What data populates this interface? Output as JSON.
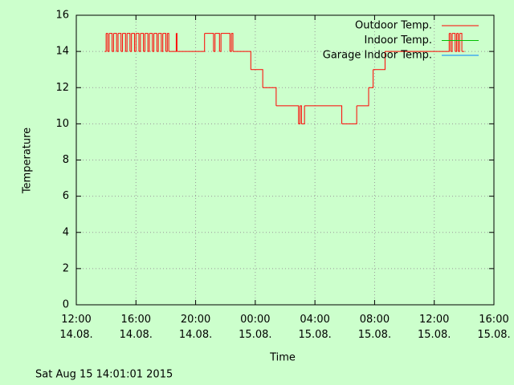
{
  "chart_data": {
    "type": "line",
    "style": "steps",
    "x_label": "Time",
    "y_label": "Temperature",
    "footer": "Sat Aug 15 14:01:01 2015",
    "x": [
      1.9,
      2.0,
      2.1,
      2.2,
      2.4,
      2.5,
      2.7,
      2.8,
      3.0,
      3.1,
      3.3,
      3.4,
      3.6,
      3.7,
      3.9,
      4.0,
      4.2,
      4.3,
      4.5,
      4.6,
      4.8,
      4.9,
      5.1,
      5.2,
      5.4,
      5.5,
      5.7,
      5.8,
      6.0,
      6.1,
      6.2,
      6.7,
      6.75,
      8.6,
      9.2,
      9.3,
      9.6,
      9.7,
      10.3,
      10.4,
      10.5,
      11.7,
      12.5,
      13.4,
      14.9,
      15.0,
      15.1,
      15.3,
      17.8,
      18.8,
      19.6,
      19.9,
      20.7,
      25.0,
      25.1,
      25.2,
      25.4,
      25.5,
      25.6,
      25.7,
      25.85,
      26.0
    ],
    "series": [
      {
        "name": "Outdoor Temp.",
        "color": "#ff0000",
        "values": [
          14,
          15,
          14,
          15,
          14,
          15,
          14,
          15,
          14,
          15,
          14,
          15,
          14,
          15,
          14,
          15,
          14,
          15,
          14,
          15,
          14,
          15,
          14,
          15,
          14,
          15,
          14,
          15,
          14,
          15,
          14,
          15,
          14,
          15,
          14,
          15,
          14,
          15,
          14,
          15,
          14,
          13,
          12,
          11,
          10,
          11,
          10,
          11,
          10,
          11,
          12,
          13,
          14,
          15,
          14,
          15,
          14,
          15,
          14,
          15,
          14,
          14
        ]
      },
      {
        "name": "Indoor Temp.",
        "color": "#00c000",
        "values": [
          null,
          null,
          null,
          null,
          null,
          null,
          null,
          null,
          null,
          null,
          null,
          null,
          null,
          null,
          null,
          null,
          null,
          null,
          null,
          null,
          null,
          null,
          null,
          null,
          null,
          null,
          null,
          null,
          null,
          null,
          null,
          null,
          null,
          null,
          null,
          null,
          null,
          null,
          null,
          null,
          null,
          null,
          null,
          null,
          null,
          null,
          null,
          null,
          null,
          null,
          null,
          null,
          null,
          null,
          null,
          null,
          null,
          null,
          null,
          null,
          null,
          null
        ]
      },
      {
        "name": "Garage Indoor Temp.",
        "color": "#0080ff",
        "values": [
          null,
          null,
          null,
          null,
          null,
          null,
          null,
          null,
          null,
          null,
          null,
          null,
          null,
          null,
          null,
          null,
          null,
          null,
          null,
          null,
          null,
          null,
          null,
          null,
          null,
          null,
          null,
          null,
          null,
          null,
          null,
          null,
          null,
          null,
          null,
          null,
          null,
          null,
          null,
          null,
          null,
          null,
          null,
          null,
          null,
          null,
          null,
          null,
          null,
          null,
          null,
          null,
          null,
          null,
          null,
          null,
          null,
          null,
          null,
          null,
          null,
          null
        ]
      }
    ],
    "xlim": [
      0,
      28
    ],
    "xticks": [
      {
        "value": 0,
        "label": "12:00\n14.08."
      },
      {
        "value": 4,
        "label": "16:00\n14.08."
      },
      {
        "value": 8,
        "label": "20:00\n14.08."
      },
      {
        "value": 12,
        "label": "00:00\n15.08."
      },
      {
        "value": 16,
        "label": "04:00\n15.08."
      },
      {
        "value": 20,
        "label": "08:00\n15.08."
      },
      {
        "value": 24,
        "label": "12:00\n15.08."
      },
      {
        "value": 28,
        "label": "16:00\n15.08."
      }
    ],
    "ylim": [
      0,
      16
    ],
    "yticks": [
      0,
      2,
      4,
      6,
      8,
      10,
      12,
      14,
      16
    ],
    "grid": true,
    "legend": "top-right",
    "background": "#ccffcc"
  }
}
